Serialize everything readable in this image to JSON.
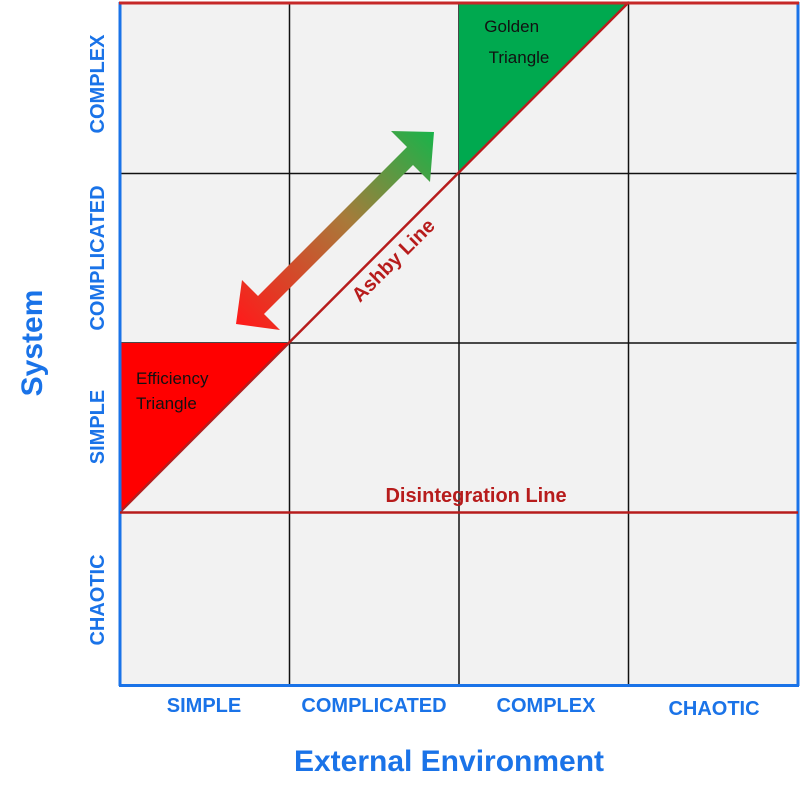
{
  "axes": {
    "x_title": "External Environment",
    "y_title": "System",
    "x_categories": [
      "SIMPLE",
      "COMPLICATED",
      "COMPLEX",
      "CHAOTIC"
    ],
    "y_categories": [
      "SIMPLE",
      "COMPLICATED",
      "COMPLEX",
      "CHAOTIC"
    ]
  },
  "regions": {
    "golden_triangle": [
      "Golden",
      "Triangle"
    ],
    "efficiency_triangle": [
      "Efficiency",
      "Triangle"
    ]
  },
  "lines": {
    "ashby": "Ashby Line",
    "disintegration": "Disintegration Line"
  },
  "colors": {
    "axis_blue": "#1a73e8",
    "line_red": "#b71c1c",
    "cell_fill": "#f2f2f2",
    "golden_green": "#00a94f",
    "efficiency_red": "#ff0000"
  }
}
